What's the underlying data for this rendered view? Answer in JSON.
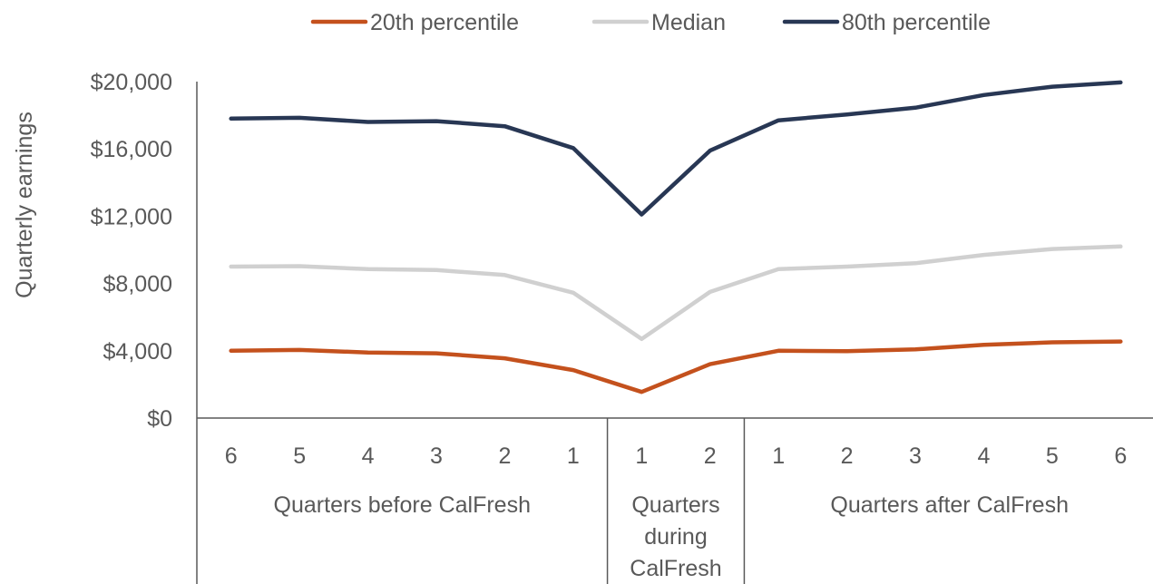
{
  "chart_data": {
    "type": "line",
    "ylabel": "Quarterly earnings",
    "ylim": [
      0,
      20000
    ],
    "yticks": [
      {
        "value": 0,
        "label": "$0"
      },
      {
        "value": 4000,
        "label": "$4,000"
      },
      {
        "value": 8000,
        "label": "$8,000"
      },
      {
        "value": 12000,
        "label": "$12,000"
      },
      {
        "value": 16000,
        "label": "$16,000"
      },
      {
        "value": 20000,
        "label": "$20,000"
      }
    ],
    "categories": [
      "6",
      "5",
      "4",
      "3",
      "2",
      "1",
      "1",
      "2",
      "1",
      "2",
      "3",
      "4",
      "5",
      "6"
    ],
    "groups": [
      {
        "label": [
          "Quarters before CalFresh"
        ],
        "count": 6
      },
      {
        "label": [
          "Quarters",
          "during",
          "CalFresh"
        ],
        "count": 2
      },
      {
        "label": [
          "Quarters after CalFresh"
        ],
        "count": 6
      }
    ],
    "series": [
      {
        "name": "20th percentile",
        "color": "#C4511D",
        "values": [
          4000,
          4050,
          3900,
          3850,
          3550,
          2850,
          1550,
          3200,
          4000,
          3980,
          4080,
          4350,
          4500,
          4550
        ]
      },
      {
        "name": "Median",
        "color": "#D0D0D0",
        "values": [
          9000,
          9030,
          8850,
          8800,
          8500,
          7450,
          4700,
          7500,
          8850,
          9000,
          9200,
          9700,
          10050,
          10200
        ]
      },
      {
        "name": "80th percentile",
        "color": "#283754",
        "values": [
          17800,
          17850,
          17600,
          17650,
          17350,
          16050,
          12100,
          15900,
          17700,
          18050,
          18450,
          19200,
          19700,
          19950
        ]
      }
    ],
    "grid": false,
    "legend_position": "top-center"
  }
}
